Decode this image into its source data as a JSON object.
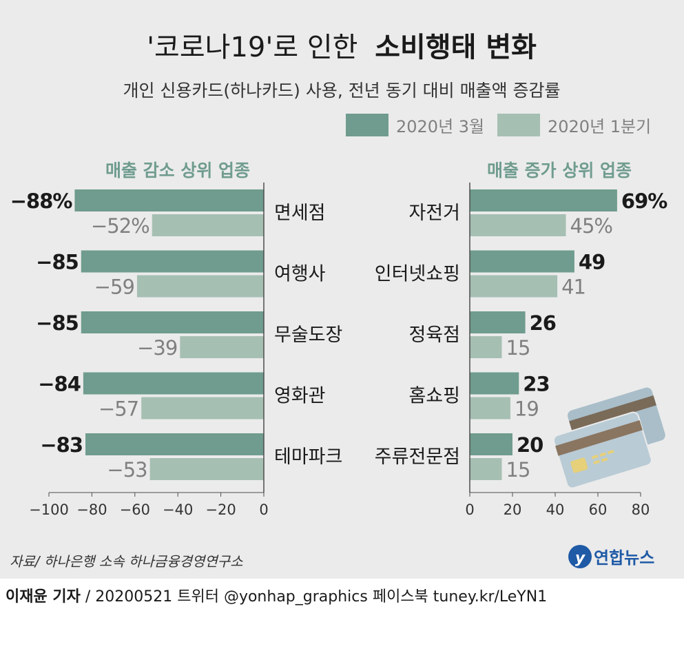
{
  "title_light": "'코로나19'로 인한",
  "title_bold": "소비행태 변화",
  "subtitle": "개인 신용카드(하나카드) 사용, 전년 동기 대비 매출액 증감률",
  "legend": [
    {
      "label": "2020년 3월",
      "color": "#6f9c8e"
    },
    {
      "label": "2020년 1분기",
      "color": "#a6bfb3"
    }
  ],
  "source": "자료/ 하나은행 소속 하나금융경영연구소",
  "logo_text": "연합뉴스",
  "footer": {
    "author": "이재윤 기자",
    "rest": " / 20200521   트위터 @yonhap_graphics  페이스북 tuney.kr/LeYN1"
  },
  "colors": {
    "series1": "#6f9c8e",
    "series2": "#a6bfb3",
    "heading": "#6f9c8e",
    "panel_bg": "#ebebeb"
  },
  "chart_data": [
    {
      "type": "bar",
      "orientation": "horizontal",
      "title": "매출 감소 상위 업종",
      "categories": [
        "면세점",
        "여행사",
        "무술도장",
        "영화관",
        "테마파크"
      ],
      "series": [
        {
          "name": "2020년 3월",
          "values": [
            -88,
            -85,
            -85,
            -84,
            -83
          ],
          "labels": [
            "−88%",
            "−85",
            "−85",
            "−84",
            "−83"
          ]
        },
        {
          "name": "2020년 1분기",
          "values": [
            -52,
            -59,
            -39,
            -57,
            -53
          ],
          "labels": [
            "−52%",
            "−59",
            "−39",
            "−57",
            "−53"
          ]
        }
      ],
      "xlim": [
        -100,
        0
      ],
      "ticks": [
        -100,
        -80,
        -60,
        -40,
        -20,
        0
      ],
      "tick_labels": [
        "−100",
        "−80",
        "−60",
        "−40",
        "−20",
        "0"
      ]
    },
    {
      "type": "bar",
      "orientation": "horizontal",
      "title": "매출 증가 상위 업종",
      "categories": [
        "자전거",
        "인터넷쇼핑",
        "정육점",
        "홈쇼핑",
        "주류전문점"
      ],
      "series": [
        {
          "name": "2020년 3월",
          "values": [
            69,
            49,
            26,
            23,
            20
          ],
          "labels": [
            "69%",
            "49",
            "26",
            "23",
            "20"
          ]
        },
        {
          "name": "2020년 1분기",
          "values": [
            45,
            41,
            15,
            19,
            15
          ],
          "labels": [
            "45%",
            "41",
            "15",
            "19",
            "15"
          ]
        }
      ],
      "xlim": [
        0,
        80
      ],
      "ticks": [
        0,
        20,
        40,
        60,
        80
      ],
      "tick_labels": [
        "0",
        "20",
        "40",
        "60",
        "80"
      ]
    }
  ]
}
